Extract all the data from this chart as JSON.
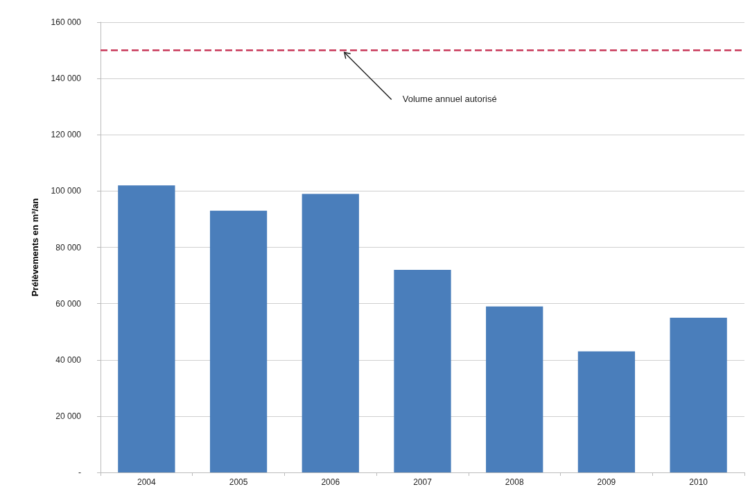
{
  "chart_data": {
    "type": "bar",
    "ylabel": "Prélèvements en m³/an",
    "categories": [
      "2004",
      "2005",
      "2006",
      "2007",
      "2008",
      "2009",
      "2010"
    ],
    "values": [
      102000,
      93000,
      99000,
      72000,
      59000,
      43000,
      55000
    ],
    "color": "#4a7ebb",
    "ylim": [
      0,
      160000
    ],
    "yticks": [
      {
        "value": 0,
        "label": "-"
      },
      {
        "value": 20000,
        "label": "20 000"
      },
      {
        "value": 40000,
        "label": "40 000"
      },
      {
        "value": 60000,
        "label": "60 000"
      },
      {
        "value": 80000,
        "label": "80 000"
      },
      {
        "value": 100000,
        "label": "100 000"
      },
      {
        "value": 120000,
        "label": "120 000"
      },
      {
        "value": 140000,
        "label": "140 000"
      },
      {
        "value": 160000,
        "label": "160 000"
      }
    ],
    "grid": "y",
    "ref_lines": [
      {
        "axis": "y",
        "value": 150000,
        "label": "Volume annuel autorisé",
        "color": "#c8385a",
        "line_style": "dashed"
      }
    ]
  }
}
